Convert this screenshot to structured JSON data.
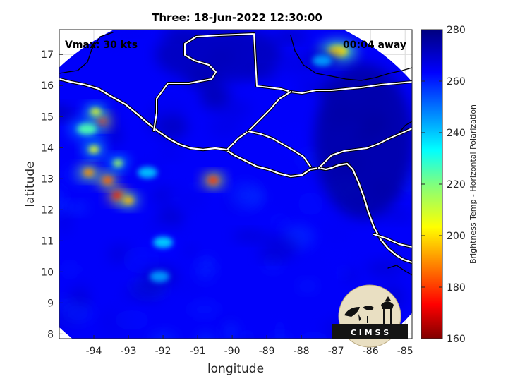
{
  "chart_data": {
    "type": "heatmap",
    "title": "Three: 18-Jun-2022 12:30:00",
    "xlabel": "longitude",
    "ylabel": "latitude",
    "xlim": [
      -95.0,
      -84.8
    ],
    "ylim": [
      7.85,
      17.8
    ],
    "xticks": [
      -94,
      -93,
      -92,
      -91,
      -90,
      -89,
      -88,
      -87,
      -86,
      -85
    ],
    "yticks": [
      8,
      9,
      10,
      11,
      12,
      13,
      14,
      15,
      16,
      17
    ],
    "grid": true,
    "colorbar": {
      "label": "Brightness Temp - Horizontal Polarization",
      "min": 160,
      "max": 280,
      "ticks": [
        160,
        180,
        200,
        220,
        240,
        260,
        280
      ]
    },
    "swath": {
      "center_lon": -90.1,
      "center_lat": 12.4,
      "radius_lon": 6.6,
      "radius_lat": 6.25,
      "background_value": 264
    },
    "features": [
      {
        "name": "convective cell",
        "lon": -93.8,
        "lat": 14.85,
        "value": 175
      },
      {
        "name": "convective cell",
        "lon": -93.95,
        "lat": 15.15,
        "value": 205
      },
      {
        "name": "convective cell",
        "lon": -94.15,
        "lat": 13.2,
        "value": 190
      },
      {
        "name": "convective cell",
        "lon": -93.6,
        "lat": 12.95,
        "value": 185
      },
      {
        "name": "convective cell",
        "lon": -93.3,
        "lat": 12.45,
        "value": 172
      },
      {
        "name": "convective cell",
        "lon": -93.0,
        "lat": 12.3,
        "value": 195
      },
      {
        "name": "convective cell",
        "lon": -93.3,
        "lat": 13.5,
        "value": 215
      },
      {
        "name": "convective cell",
        "lon": -94.0,
        "lat": 13.95,
        "value": 205
      },
      {
        "name": "convective cell",
        "lon": -90.55,
        "lat": 12.95,
        "value": 180
      },
      {
        "name": "warm region",
        "lon": -92.0,
        "lat": 10.95,
        "value": 238
      },
      {
        "name": "warm region",
        "lon": -92.1,
        "lat": 9.85,
        "value": 245
      },
      {
        "name": "warm region",
        "lon": -92.45,
        "lat": 13.2,
        "value": 240
      },
      {
        "name": "warm region",
        "lon": -94.2,
        "lat": 14.6,
        "value": 225
      },
      {
        "name": "warm region",
        "lon": -86.95,
        "lat": 17.1,
        "value": 200
      },
      {
        "name": "warm region",
        "lon": -87.4,
        "lat": 16.8,
        "value": 245
      }
    ]
  },
  "annotations": {
    "vmax": "Vmax: 30 kts",
    "time_away": "00:04 away"
  },
  "logo": {
    "text": "C I M S S"
  },
  "colors": {
    "land_boundary": "#ffffff",
    "coast_outline": "#000000",
    "grid": "#d9d9d9"
  }
}
